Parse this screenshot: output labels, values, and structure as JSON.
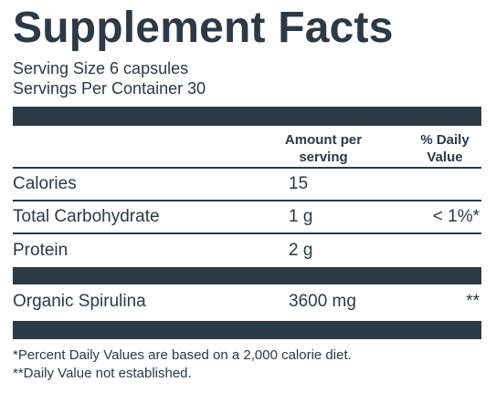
{
  "title": "Supplement Facts",
  "serving_size": "Serving Size 6 capsules",
  "servings_per_container": "Servings Per Container 30",
  "header": {
    "amount_line1": "Amount per",
    "amount_line2": "serving",
    "dv_line1": "% Daily",
    "dv_line2": "Value"
  },
  "rows": [
    {
      "name": "Calories",
      "amount": "15",
      "dv": ""
    },
    {
      "name": "Total Carbohydrate",
      "amount": "1 g",
      "dv": "< 1%*"
    },
    {
      "name": "Protein",
      "amount": "2 g",
      "dv": ""
    }
  ],
  "ingredient": {
    "name": "Organic Spirulina",
    "amount": "3600 mg",
    "dv": "**"
  },
  "footnotes": [
    "*Percent Daily Values are based on a 2,000 calorie diet.",
    "**Daily Value not established."
  ],
  "colors": {
    "text": "#2b3a46",
    "bar": "#2b3a46",
    "background": "#ffffff"
  }
}
